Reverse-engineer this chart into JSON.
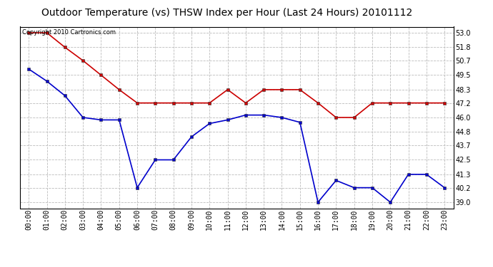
{
  "title": "Outdoor Temperature (vs) THSW Index per Hour (Last 24 Hours) 20101112",
  "copyright_text": "Copyright 2010 Cartronics.com",
  "hours": [
    "00:00",
    "01:00",
    "02:00",
    "03:00",
    "04:00",
    "05:00",
    "06:00",
    "07:00",
    "08:00",
    "09:00",
    "10:00",
    "11:00",
    "12:00",
    "13:00",
    "14:00",
    "15:00",
    "16:00",
    "17:00",
    "18:00",
    "19:00",
    "20:00",
    "21:00",
    "22:00",
    "23:00"
  ],
  "temp_blue": [
    50.0,
    49.0,
    47.8,
    46.0,
    45.8,
    45.8,
    40.2,
    42.5,
    42.5,
    44.4,
    45.5,
    45.8,
    46.2,
    46.2,
    46.0,
    45.6,
    39.0,
    40.8,
    40.2,
    40.2,
    39.0,
    41.3,
    41.3,
    40.2
  ],
  "thsw_red": [
    53.0,
    53.0,
    51.8,
    50.7,
    49.5,
    48.3,
    47.2,
    47.2,
    47.2,
    47.2,
    47.2,
    48.3,
    47.2,
    48.3,
    48.3,
    48.3,
    47.2,
    46.0,
    46.0,
    47.2,
    47.2,
    47.2,
    47.2,
    47.2
  ],
  "yticks": [
    39.0,
    40.2,
    41.3,
    42.5,
    43.7,
    44.8,
    46.0,
    47.2,
    48.3,
    49.5,
    50.7,
    51.8,
    53.0
  ],
  "ymin": 38.5,
  "ymax": 53.5,
  "blue_color": "#0000cc",
  "red_color": "#cc0000",
  "grid_color": "#bbbbbb",
  "bg_color": "#ffffff",
  "plot_bg_color": "#ffffff",
  "title_fontsize": 10,
  "tick_fontsize": 7,
  "copyright_fontsize": 6
}
